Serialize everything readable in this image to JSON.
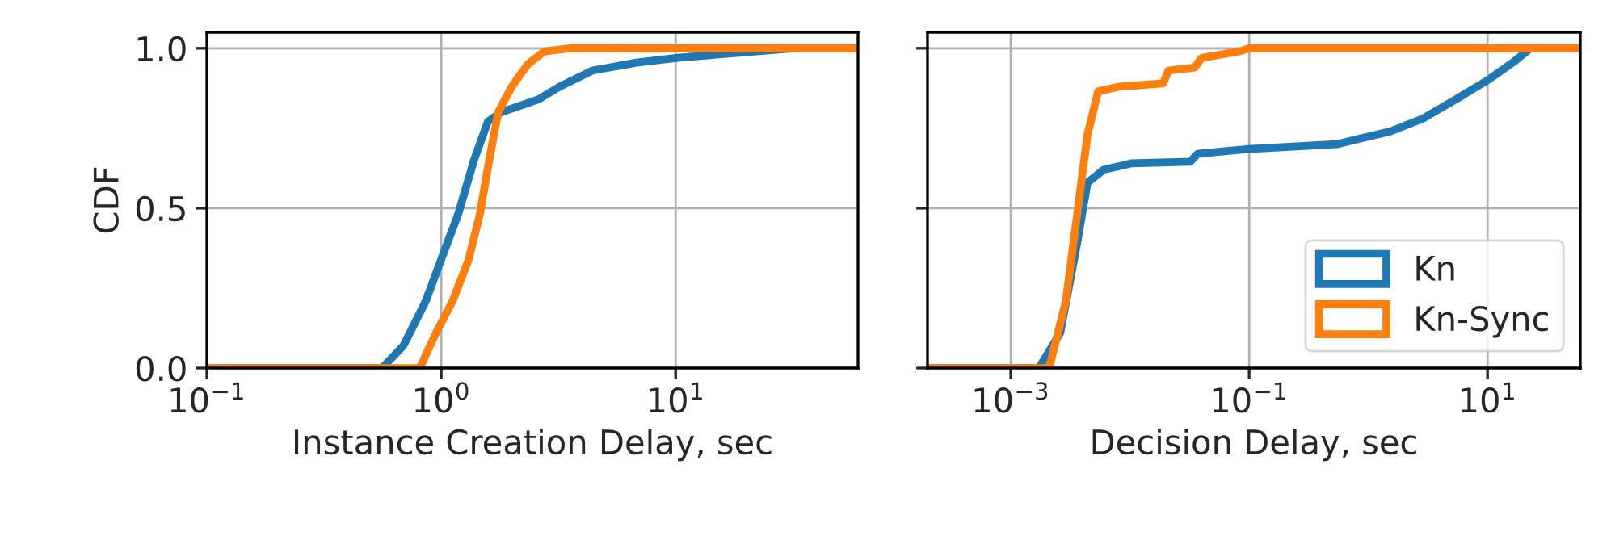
{
  "chart_data": [
    {
      "type": "line",
      "xlabel": "Instance Creation Delay, sec",
      "ylabel": "CDF",
      "log": "x",
      "grid": true,
      "legend": false,
      "xlim": [
        0.1,
        60
      ],
      "xticks": [
        {
          "value": 0.1,
          "label": "10$^{−1}$"
        },
        {
          "value": 1,
          "label": "10$^{0}$"
        },
        {
          "value": 10,
          "label": "10$^{1}$"
        }
      ],
      "ylim": [
        0,
        1.05
      ],
      "yticks": [
        {
          "value": 0,
          "label": "0.0"
        },
        {
          "value": 0.5,
          "label": "0.5"
        },
        {
          "value": 1,
          "label": "1.0"
        }
      ],
      "series": [
        {
          "color": "#1f77b4",
          "x": [
            0.1,
            0.56,
            0.69,
            0.86,
            1.0,
            1.18,
            1.38,
            1.58,
            1.8,
            2.6,
            3.2,
            4.4,
            6.8,
            10.2,
            22,
            32,
            60
          ],
          "values": [
            0,
            0,
            0.07,
            0.21,
            0.34,
            0.48,
            0.65,
            0.77,
            0.8,
            0.84,
            0.88,
            0.93,
            0.955,
            0.97,
            0.99,
            1.0,
            1.0
          ]
        },
        {
          "color": "#ff7f0e",
          "x": [
            0.1,
            0.81,
            0.95,
            1.12,
            1.31,
            1.46,
            1.62,
            1.75,
            2.0,
            2.34,
            2.75,
            3.55,
            60
          ],
          "values": [
            0,
            0,
            0.11,
            0.21,
            0.34,
            0.48,
            0.67,
            0.8,
            0.88,
            0.95,
            0.99,
            1.0,
            1.0
          ]
        }
      ]
    },
    {
      "type": "line",
      "xlabel": "Decision Delay, sec",
      "log": "x",
      "grid": true,
      "legend": "lower right",
      "tick_labels": "x",
      "xlim": [
        0.0002,
        60
      ],
      "xticks": [
        {
          "value": 0.001,
          "label": "10$^{−3}$"
        },
        {
          "value": 0.1,
          "label": "10$^{−1}$"
        },
        {
          "value": 10,
          "label": "10$^{1}$"
        }
      ],
      "ylim": [
        0,
        1.05
      ],
      "yticks": [
        {
          "value": 0,
          "label": null
        },
        {
          "value": 0.5,
          "label": null
        },
        {
          "value": 1,
          "label": null
        }
      ],
      "series": [
        {
          "name": "Kn",
          "color": "#1f77b4",
          "x": [
            0.0002,
            0.00172,
            0.0026,
            0.0036,
            0.0044,
            0.006,
            0.0102,
            0.032,
            0.037,
            0.1,
            0.54,
            1.53,
            2.86,
            5.4,
            10,
            16.9,
            23,
            60
          ],
          "values": [
            0,
            0,
            0.11,
            0.39,
            0.58,
            0.62,
            0.64,
            0.645,
            0.67,
            0.685,
            0.7,
            0.74,
            0.78,
            0.84,
            0.9,
            0.96,
            1.0,
            1.0
          ]
        },
        {
          "name": "Kn-Sync",
          "color": "#ff7f0e",
          "x": [
            0.0002,
            0.0021,
            0.0029,
            0.0036,
            0.0044,
            0.0054,
            0.0082,
            0.019,
            0.021,
            0.035,
            0.04,
            0.082,
            0.1,
            60
          ],
          "values": [
            0,
            0,
            0.21,
            0.48,
            0.73,
            0.865,
            0.88,
            0.89,
            0.93,
            0.94,
            0.97,
            0.99,
            1.0,
            1.0
          ]
        }
      ]
    }
  ]
}
